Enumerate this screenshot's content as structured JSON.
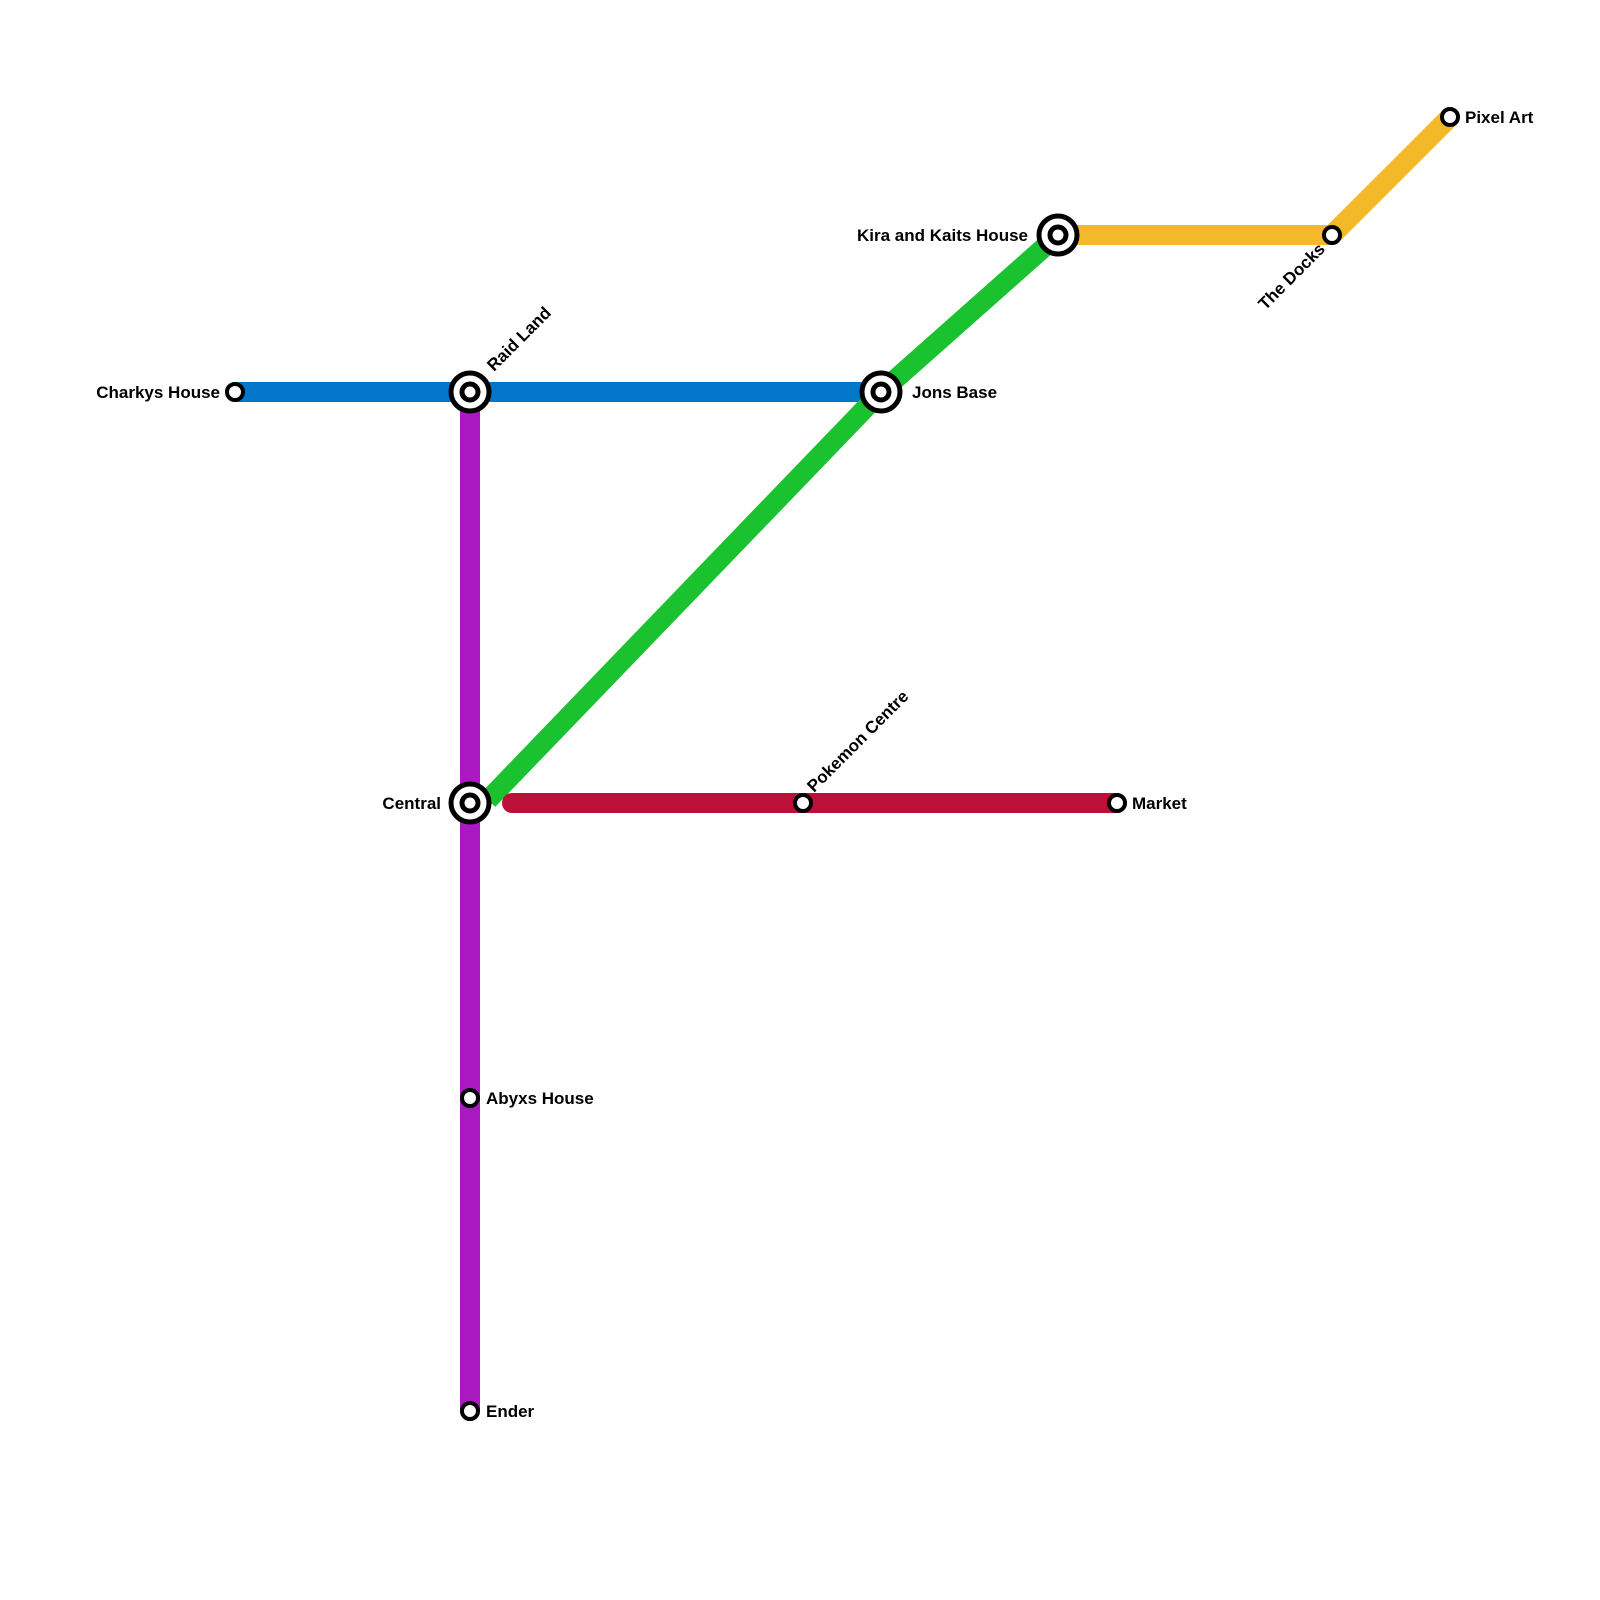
{
  "lines": [
    {
      "name": "blue",
      "color": "#0277c9"
    },
    {
      "name": "purple",
      "color": "#aa18c2"
    },
    {
      "name": "green",
      "color": "#1ac22f"
    },
    {
      "name": "red",
      "color": "#bd1038"
    },
    {
      "name": "yellow",
      "color": "#f3b928"
    }
  ],
  "stations": {
    "charkys": "Charkys House",
    "raid": "Raid Land",
    "jons": "Jons Base",
    "kira": "Kira and Kaits House",
    "docks": "The Docks",
    "pixel": "Pixel Art",
    "central": "Central",
    "pokemon": "Pokemon Centre",
    "market": "Market",
    "abyxs": "Abyxs House",
    "ender": "Ender"
  }
}
